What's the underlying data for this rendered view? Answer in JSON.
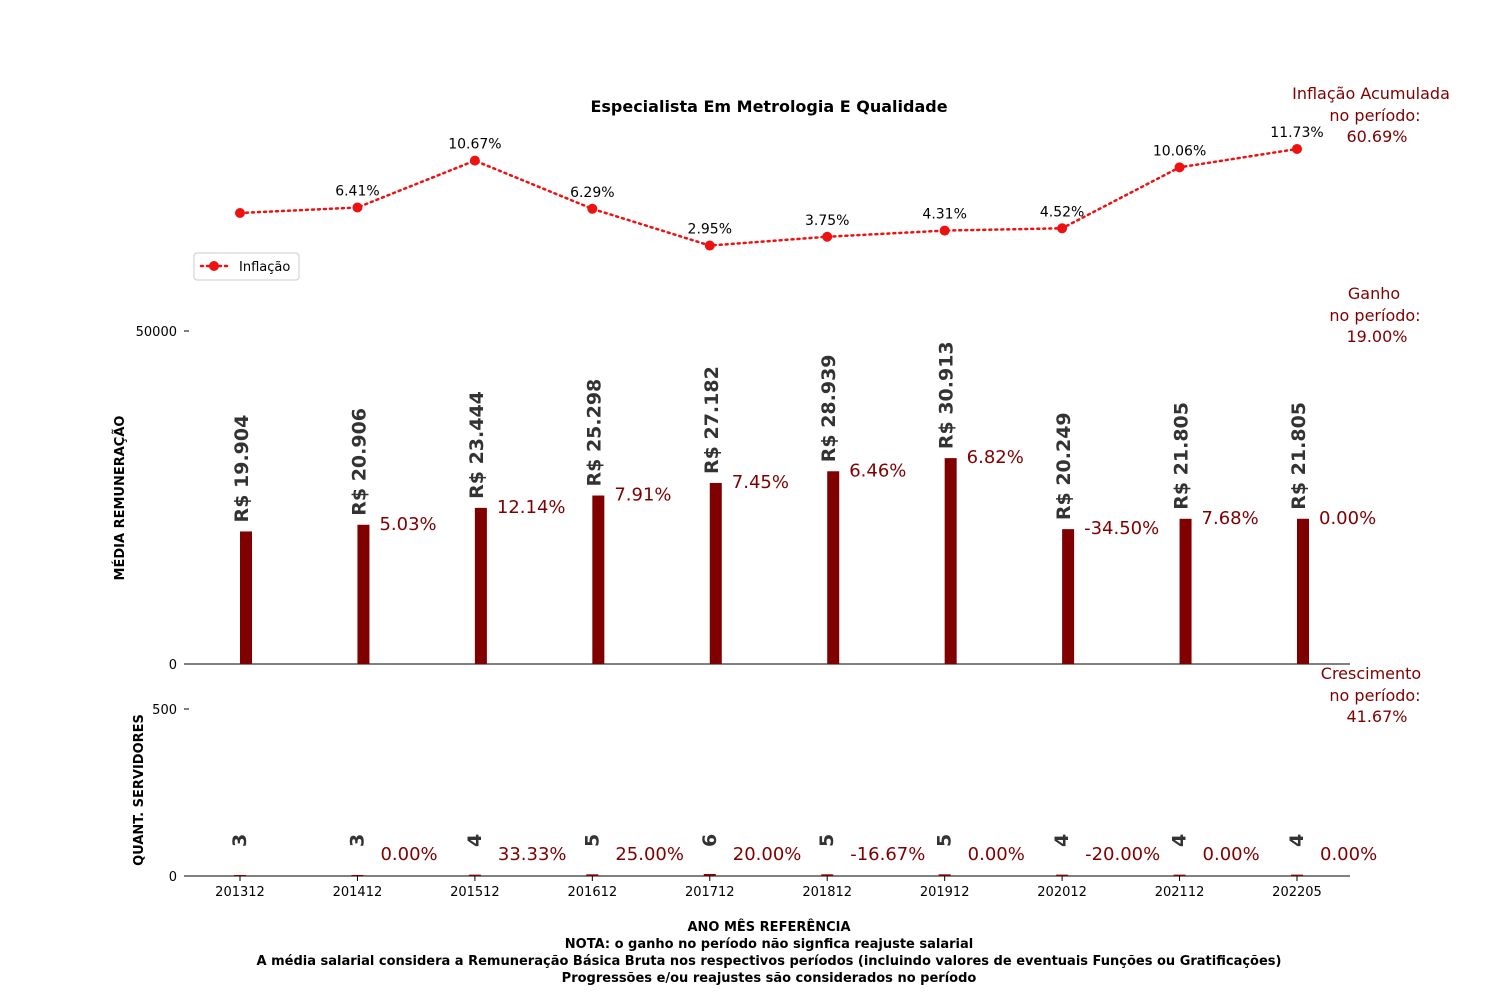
{
  "chart_data": {
    "title": "Especialista Em Metrologia E Qualidade",
    "categories": [
      "201312",
      "201412",
      "201512",
      "201612",
      "201712",
      "201812",
      "201912",
      "202012",
      "202112",
      "202205"
    ],
    "inflation": {
      "legend": "Inflação",
      "values": [
        5.91,
        6.41,
        10.67,
        6.29,
        2.95,
        3.75,
        4.31,
        4.52,
        10.06,
        11.73
      ],
      "labels": [
        "",
        "6.41%",
        "10.67%",
        "6.29%",
        "2.95%",
        "3.75%",
        "4.31%",
        "4.52%",
        "10.06%",
        "11.73%"
      ],
      "color": "#ee1111",
      "summary": [
        "Inflação Acumulada",
        "no período:",
        "60.69%"
      ]
    },
    "salary": {
      "ylabel": "MÉDIA REMUNERAÇÃO",
      "ylim": [
        0,
        50000
      ],
      "yticks": [
        "0",
        "50000"
      ],
      "values": [
        19904,
        20906,
        23444,
        25298,
        27182,
        28939,
        30913,
        20249,
        21805,
        21805
      ],
      "labels": [
        "R$ 19.904",
        "R$ 20.906",
        "R$ 23.444",
        "R$ 25.298",
        "R$ 27.182",
        "R$ 28.939",
        "R$ 30.913",
        "R$ 20.249",
        "R$ 21.805",
        "R$ 21.805"
      ],
      "changes": [
        "",
        "5.03%",
        "12.14%",
        "7.91%",
        "7.45%",
        "6.46%",
        "6.82%",
        "-34.50%",
        "7.68%",
        "0.00%"
      ],
      "color": "#800000",
      "summary": [
        "Ganho",
        "no período:",
        "19.00%"
      ]
    },
    "servers": {
      "ylabel": "QUANT. SERVIDORES",
      "ylim": [
        0,
        500
      ],
      "yticks": [
        "0",
        "500"
      ],
      "values": [
        3,
        3,
        4,
        5,
        6,
        5,
        5,
        4,
        4,
        4
      ],
      "labels": [
        "3",
        "3",
        "4",
        "5",
        "6",
        "5",
        "5",
        "4",
        "4",
        "4"
      ],
      "changes": [
        "",
        "0.00%",
        "33.33%",
        "25.00%",
        "20.00%",
        "-16.67%",
        "0.00%",
        "-20.00%",
        "0.00%",
        "0.00%"
      ],
      "summary": [
        "Crescimento",
        "no período:",
        "41.67%"
      ]
    },
    "xlabel": "ANO MÊS REFERÊNCIA",
    "notes": [
      "NOTA: o ganho no período não signfica reajuste salarial",
      "A média salarial considera a Remuneração Básica Bruta nos respectivos períodos (incluindo valores de eventuais Funções ou Gratificações)",
      "Progressões e/ou reajustes são considerados no período"
    ]
  }
}
